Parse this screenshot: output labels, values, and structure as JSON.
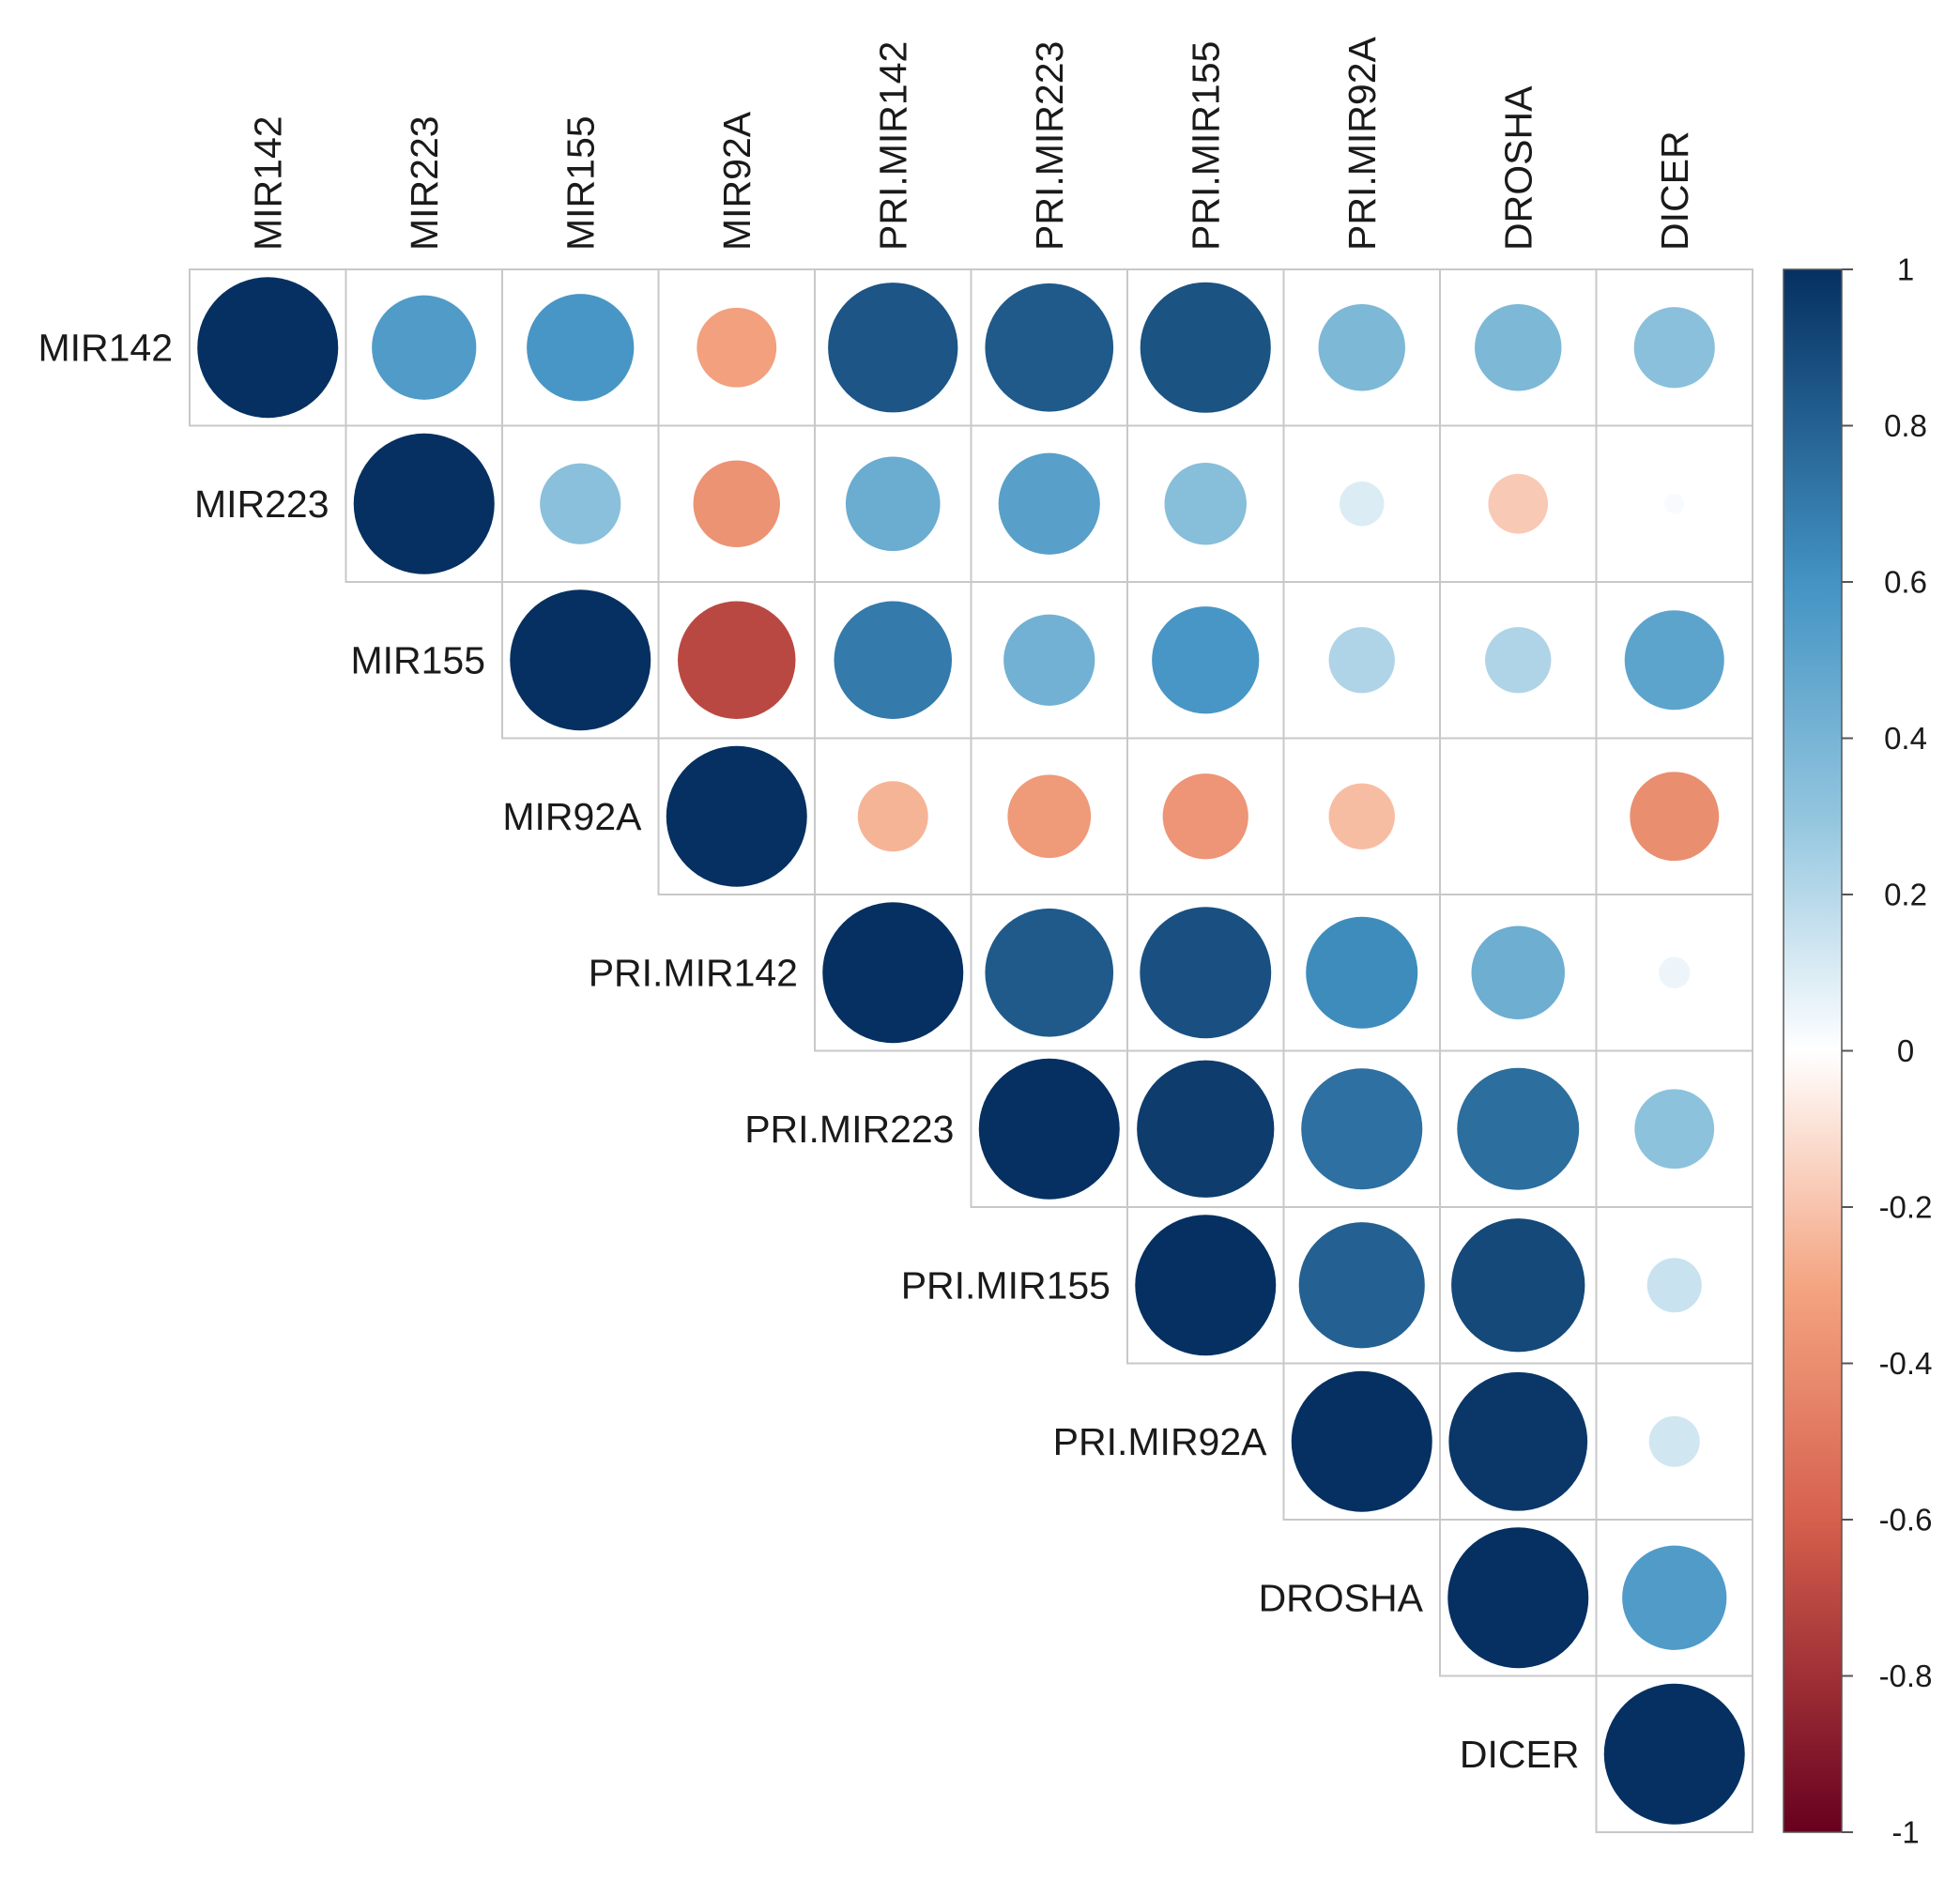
{
  "chart_data": {
    "type": "heatmap",
    "title": "",
    "variables": [
      "MIR142",
      "MIR223",
      "MIR155",
      "MIR92A",
      "PRI.MIR142",
      "PRI.MIR223",
      "PRI.MIR155",
      "PRI.MIR92A",
      "DROSHA",
      "DICER"
    ],
    "matrix_part": "upper",
    "glyph": "circle",
    "values": [
      [
        1.0,
        0.55,
        0.58,
        -0.32,
        0.85,
        0.83,
        0.86,
        0.38,
        0.38,
        0.33
      ],
      [
        null,
        1.0,
        0.33,
        -0.38,
        0.45,
        0.52,
        0.34,
        0.1,
        -0.18,
        0.02
      ],
      [
        null,
        null,
        1.0,
        -0.7,
        0.7,
        0.42,
        0.58,
        0.22,
        0.22,
        0.5
      ],
      [
        null,
        null,
        null,
        1.0,
        -0.25,
        -0.35,
        -0.37,
        -0.22,
        0.0,
        -0.4
      ],
      [
        null,
        null,
        null,
        null,
        1.0,
        0.83,
        0.87,
        0.63,
        0.44,
        0.05
      ],
      [
        null,
        null,
        null,
        null,
        null,
        1.0,
        0.95,
        0.74,
        0.75,
        0.32
      ],
      [
        null,
        null,
        null,
        null,
        null,
        null,
        1.0,
        0.8,
        0.9,
        0.15
      ],
      [
        null,
        null,
        null,
        null,
        null,
        null,
        null,
        1.0,
        0.97,
        0.13
      ],
      [
        null,
        null,
        null,
        null,
        null,
        null,
        null,
        null,
        1.0,
        0.55
      ],
      [
        null,
        null,
        null,
        null,
        null,
        null,
        null,
        null,
        null,
        1.0
      ]
    ],
    "colorbar": {
      "range": [
        -1,
        1
      ],
      "ticks": [
        "1",
        "0.8",
        "0.6",
        "0.4",
        "0.2",
        "0",
        "-0.2",
        "-0.4",
        "-0.6",
        "-0.8",
        "-1"
      ]
    },
    "colors": {
      "neg_dark": "#67001F",
      "neg_mid": "#D6604D",
      "neg_light": "#F4A582",
      "neutral": "#FFFFFF",
      "pos_light": "#92C5DE",
      "pos_mid": "#4393C3",
      "pos_dark": "#053061",
      "grid": "#C8C8C8"
    }
  }
}
